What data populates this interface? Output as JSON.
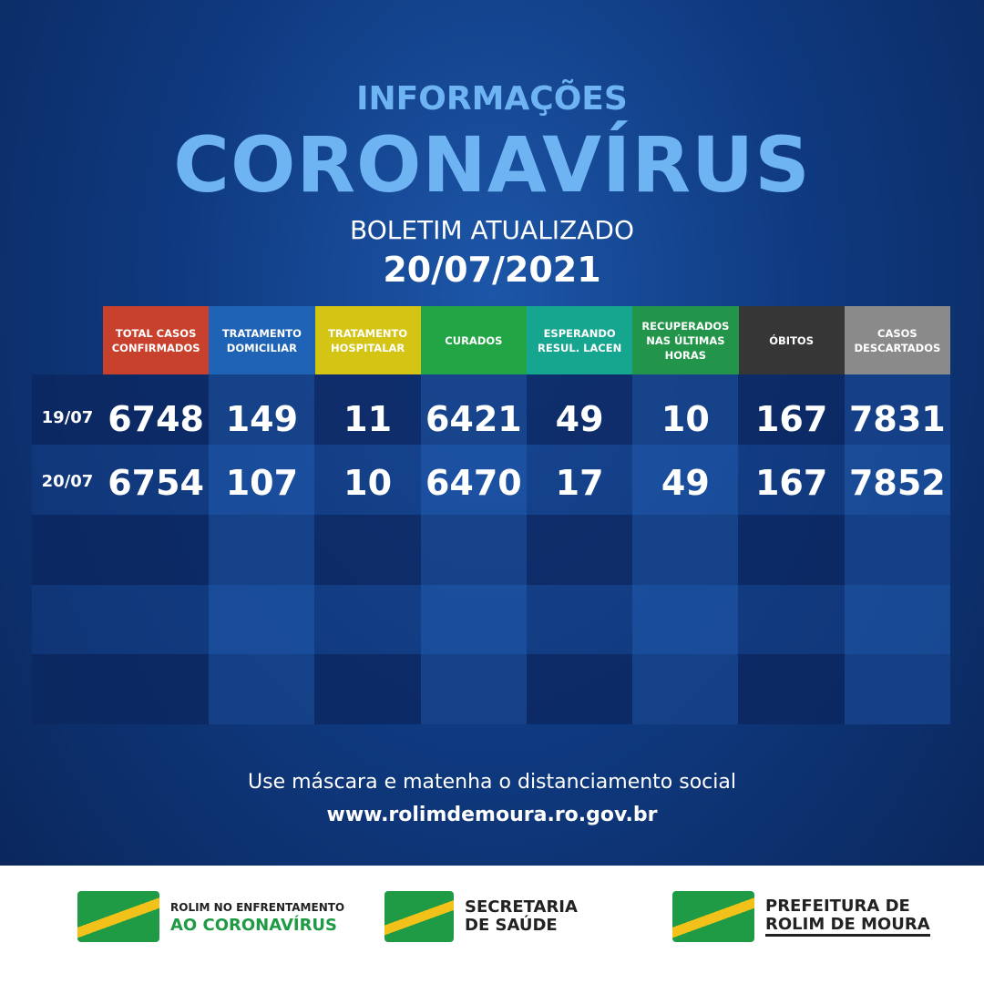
{
  "header": {
    "kicker": "INFORMAÇÕES",
    "title": "CORONAVÍRUS",
    "subtitle": "BOLETIM ATUALIZADO",
    "date": "20/07/2021"
  },
  "table": {
    "columns": [
      "TOTAL CASOS CONFIRMADOS",
      "TRATAMENTO DOMICILIAR",
      "TRATAMENTO HOSPITALAR",
      "CURADOS",
      "ESPERANDO RESUL. LACEN",
      "RECUPERADOS NAS ÚLTIMAS HORAS",
      "ÓBITOS",
      "CASOS DESCARTADOS"
    ],
    "rows": [
      {
        "label": "19/07",
        "values": [
          6748,
          149,
          11,
          6421,
          49,
          10,
          167,
          7831
        ]
      },
      {
        "label": "20/07",
        "values": [
          6754,
          107,
          10,
          6470,
          17,
          49,
          167,
          7852
        ]
      }
    ]
  },
  "footer": {
    "message": "Use máscara e matenha o distanciamento social",
    "url": "www.rolimdemoura.ro.gov.br"
  },
  "logos": [
    {
      "line1": "ROLIM NO ENFRENTAMENTO",
      "line2": "AO CORONAVÍRUS"
    },
    {
      "line1": "SECRETARIA",
      "line2": "DE SAÚDE"
    },
    {
      "line1": "PREFEITURA DE",
      "line2": "ROLIM DE MOURA"
    }
  ]
}
